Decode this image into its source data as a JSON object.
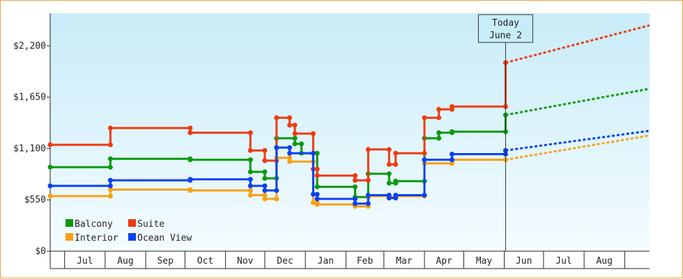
{
  "chart_data": {
    "type": "line",
    "title": "",
    "xlabel": "",
    "ylabel": "",
    "y_ticks": [
      "$0",
      "$550",
      "$1,100",
      "$1,650",
      "$2,200"
    ],
    "y_tick_values": [
      0,
      550,
      1100,
      1650,
      2200
    ],
    "ylim": [
      0,
      2550
    ],
    "x_months": [
      "Jul",
      "Aug",
      "Sep",
      "Oct",
      "Nov",
      "Dec",
      "Jan",
      "Feb",
      "Mar",
      "Apr",
      "May",
      "Jun",
      "Jul",
      "Aug"
    ],
    "x_month_starts": [
      "2023-07-01",
      "2023-08-01",
      "2023-09-01",
      "2023-10-01",
      "2023-11-01",
      "2023-12-01",
      "2024-01-01",
      "2024-02-01",
      "2024-03-01",
      "2024-04-01",
      "2024-05-01",
      "2024-06-01",
      "2024-07-01",
      "2024-08-01",
      "2024-09-01"
    ],
    "xlim": [
      "2023-06-20",
      "2024-09-20"
    ],
    "today_marker": {
      "label_line1": "Today",
      "label_line2": "June 2",
      "date": "2024-06-02"
    },
    "legend_placement": "bottom-left",
    "grid": false,
    "series": [
      {
        "name": "Balcony",
        "color": "#0a9a0a",
        "points": [
          [
            "2023-06-20",
            900
          ],
          [
            "2023-08-05",
            900
          ],
          [
            "2023-08-05",
            990
          ],
          [
            "2023-10-05",
            990
          ],
          [
            "2023-10-05",
            980
          ],
          [
            "2023-11-20",
            980
          ],
          [
            "2023-11-20",
            850
          ],
          [
            "2023-12-01",
            850
          ],
          [
            "2023-12-01",
            780
          ],
          [
            "2023-12-10",
            780
          ],
          [
            "2023-12-10",
            1210
          ],
          [
            "2023-12-24",
            1210
          ],
          [
            "2023-12-24",
            1150
          ],
          [
            "2023-12-29",
            1150
          ],
          [
            "2023-12-29",
            1050
          ],
          [
            "2024-01-10",
            1050
          ],
          [
            "2024-01-10",
            690
          ],
          [
            "2024-02-08",
            690
          ],
          [
            "2024-02-08",
            580
          ],
          [
            "2024-02-18",
            580
          ],
          [
            "2024-02-18",
            830
          ],
          [
            "2024-03-05",
            830
          ],
          [
            "2024-03-05",
            730
          ],
          [
            "2024-03-10",
            730
          ],
          [
            "2024-03-10",
            750
          ],
          [
            "2024-04-01",
            750
          ],
          [
            "2024-04-01",
            1210
          ],
          [
            "2024-04-12",
            1210
          ],
          [
            "2024-04-12",
            1270
          ],
          [
            "2024-04-22",
            1270
          ],
          [
            "2024-04-22",
            1280
          ],
          [
            "2024-06-02",
            1280
          ],
          [
            "2024-06-02",
            1460
          ]
        ],
        "forecast": [
          [
            "2024-06-02",
            1460
          ],
          [
            "2024-09-20",
            1740
          ]
        ]
      },
      {
        "name": "Suite",
        "color": "#ee3a10",
        "points": [
          [
            "2023-06-20",
            1140
          ],
          [
            "2023-08-05",
            1140
          ],
          [
            "2023-08-05",
            1320
          ],
          [
            "2023-10-05",
            1320
          ],
          [
            "2023-10-05",
            1270
          ],
          [
            "2023-11-20",
            1270
          ],
          [
            "2023-11-20",
            1080
          ],
          [
            "2023-12-01",
            1080
          ],
          [
            "2023-12-01",
            970
          ],
          [
            "2023-12-10",
            970
          ],
          [
            "2023-12-10",
            1430
          ],
          [
            "2023-12-20",
            1430
          ],
          [
            "2023-12-20",
            1350
          ],
          [
            "2023-12-24",
            1350
          ],
          [
            "2023-12-24",
            1260
          ],
          [
            "2024-01-07",
            1260
          ],
          [
            "2024-01-07",
            880
          ],
          [
            "2024-01-10",
            880
          ],
          [
            "2024-01-10",
            810
          ],
          [
            "2024-02-08",
            810
          ],
          [
            "2024-02-08",
            760
          ],
          [
            "2024-02-18",
            760
          ],
          [
            "2024-02-18",
            1090
          ],
          [
            "2024-03-05",
            1090
          ],
          [
            "2024-03-05",
            930
          ],
          [
            "2024-03-10",
            930
          ],
          [
            "2024-03-10",
            1050
          ],
          [
            "2024-04-01",
            1050
          ],
          [
            "2024-04-01",
            1430
          ],
          [
            "2024-04-12",
            1430
          ],
          [
            "2024-04-12",
            1520
          ],
          [
            "2024-04-22",
            1520
          ],
          [
            "2024-04-22",
            1550
          ],
          [
            "2024-06-02",
            1550
          ],
          [
            "2024-06-02",
            2020
          ]
        ],
        "forecast": [
          [
            "2024-06-02",
            2020
          ],
          [
            "2024-09-20",
            2420
          ]
        ]
      },
      {
        "name": "Interior",
        "color": "#f8a010",
        "points": [
          [
            "2023-06-20",
            590
          ],
          [
            "2023-08-05",
            590
          ],
          [
            "2023-08-05",
            660
          ],
          [
            "2023-10-05",
            660
          ],
          [
            "2023-10-05",
            650
          ],
          [
            "2023-11-20",
            650
          ],
          [
            "2023-11-20",
            600
          ],
          [
            "2023-12-01",
            600
          ],
          [
            "2023-12-01",
            560
          ],
          [
            "2023-12-10",
            560
          ],
          [
            "2023-12-10",
            1000
          ],
          [
            "2023-12-20",
            1000
          ],
          [
            "2023-12-20",
            960
          ],
          [
            "2024-01-07",
            960
          ],
          [
            "2024-01-07",
            520
          ],
          [
            "2024-01-10",
            520
          ],
          [
            "2024-01-10",
            500
          ],
          [
            "2024-02-08",
            500
          ],
          [
            "2024-02-08",
            480
          ],
          [
            "2024-02-18",
            480
          ],
          [
            "2024-02-18",
            590
          ],
          [
            "2024-03-05",
            590
          ],
          [
            "2024-03-05",
            580
          ],
          [
            "2024-03-10",
            580
          ],
          [
            "2024-03-10",
            590
          ],
          [
            "2024-04-01",
            590
          ],
          [
            "2024-04-01",
            940
          ],
          [
            "2024-04-22",
            940
          ],
          [
            "2024-04-22",
            980
          ],
          [
            "2024-06-02",
            980
          ]
        ],
        "forecast": [
          [
            "2024-06-02",
            980
          ],
          [
            "2024-09-20",
            1240
          ]
        ]
      },
      {
        "name": "Ocean View",
        "color": "#0a40f0",
        "points": [
          [
            "2023-06-20",
            700
          ],
          [
            "2023-08-05",
            700
          ],
          [
            "2023-08-05",
            760
          ],
          [
            "2023-10-05",
            760
          ],
          [
            "2023-10-05",
            770
          ],
          [
            "2023-11-20",
            770
          ],
          [
            "2023-11-20",
            700
          ],
          [
            "2023-12-01",
            700
          ],
          [
            "2023-12-01",
            650
          ],
          [
            "2023-12-10",
            650
          ],
          [
            "2023-12-10",
            1110
          ],
          [
            "2023-12-20",
            1110
          ],
          [
            "2023-12-20",
            1050
          ],
          [
            "2024-01-07",
            1050
          ],
          [
            "2024-01-07",
            610
          ],
          [
            "2024-01-10",
            610
          ],
          [
            "2024-01-10",
            560
          ],
          [
            "2024-02-08",
            560
          ],
          [
            "2024-02-08",
            510
          ],
          [
            "2024-02-18",
            510
          ],
          [
            "2024-02-18",
            600
          ],
          [
            "2024-03-05",
            600
          ],
          [
            "2024-03-05",
            570
          ],
          [
            "2024-03-10",
            570
          ],
          [
            "2024-03-10",
            600
          ],
          [
            "2024-04-01",
            600
          ],
          [
            "2024-04-01",
            980
          ],
          [
            "2024-04-22",
            980
          ],
          [
            "2024-04-22",
            1040
          ],
          [
            "2024-06-02",
            1040
          ],
          [
            "2024-06-02",
            1080
          ]
        ],
        "forecast": [
          [
            "2024-06-02",
            1080
          ],
          [
            "2024-09-20",
            1290
          ]
        ]
      }
    ],
    "legend": [
      {
        "name": "Balcony",
        "color": "#0a9a0a"
      },
      {
        "name": "Suite",
        "color": "#ee3a10"
      },
      {
        "name": "Interior",
        "color": "#f8a010"
      },
      {
        "name": "Ocean View",
        "color": "#0a40f0"
      }
    ]
  }
}
